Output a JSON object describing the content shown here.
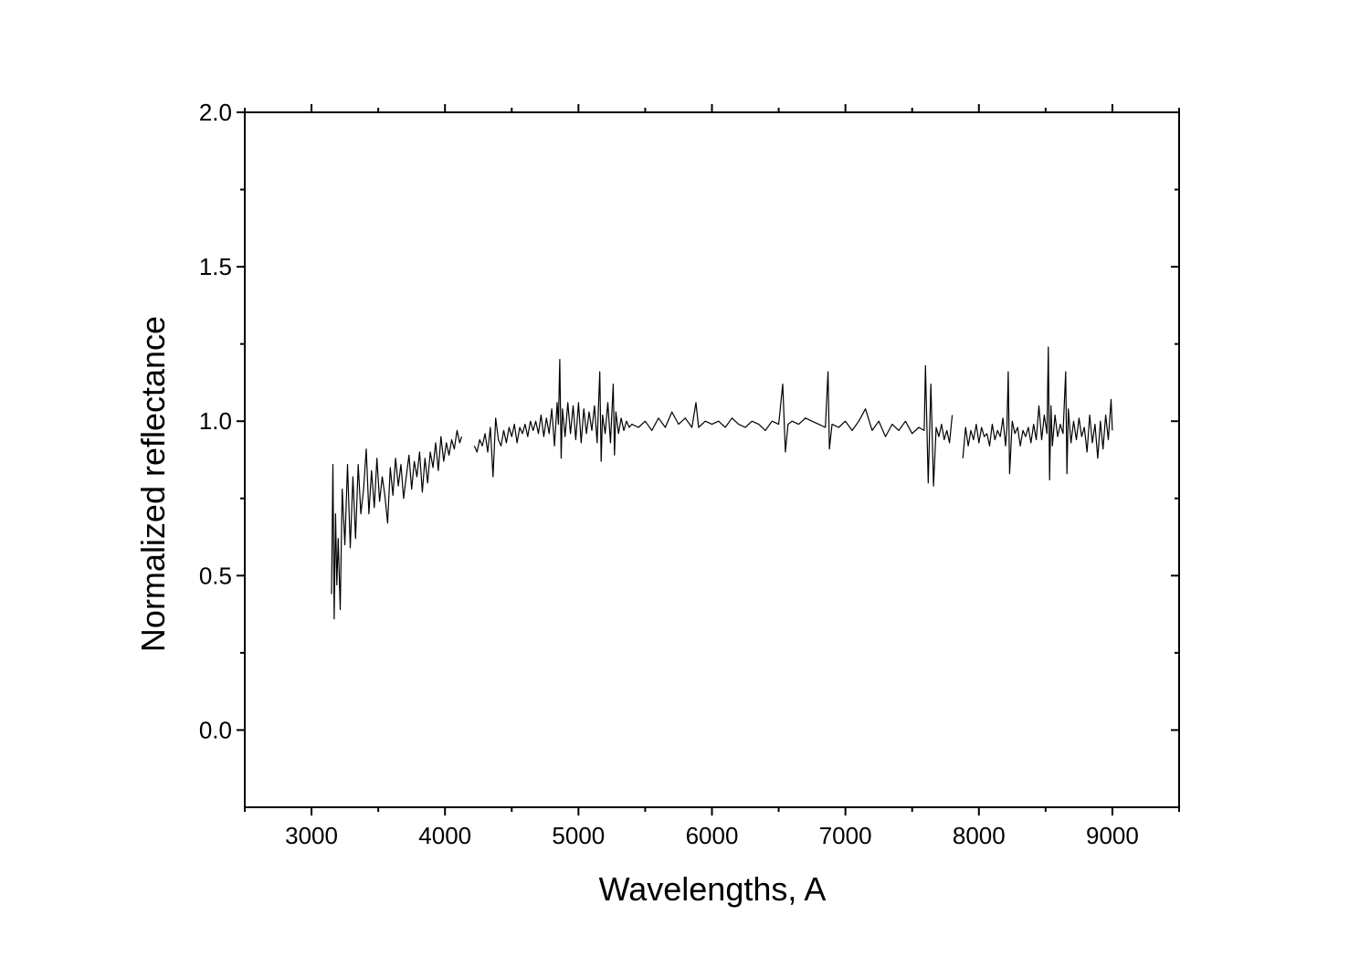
{
  "chart_data": {
    "type": "line",
    "title": "",
    "xlabel": "Wavelengths, A",
    "ylabel": "Normalized reflectance",
    "xlim": [
      2500,
      9500
    ],
    "ylim": [
      -0.25,
      2.0
    ],
    "x_ticks": [
      "3000",
      "4000",
      "5000",
      "6000",
      "7000",
      "8000",
      "9000"
    ],
    "y_ticks": [
      "0.0",
      "0.5",
      "1.0",
      "1.5",
      "2.0"
    ],
    "grid": false,
    "legend": "none",
    "line_color": "#000000",
    "series": [
      {
        "segments": [
          {
            "x": [
              3150,
              3160,
              3170,
              3180,
              3190,
              3200,
              3215,
              3230,
              3250,
              3270,
              3290,
              3310,
              3330,
              3350,
              3370,
              3390,
              3410,
              3430,
              3450,
              3470,
              3490,
              3510,
              3530,
              3550,
              3570,
              3590,
              3610,
              3630,
              3650,
              3670,
              3690,
              3710,
              3730,
              3750,
              3770,
              3790,
              3810,
              3830,
              3850,
              3870,
              3890,
              3910,
              3930,
              3950,
              3970,
              3990,
              4010,
              4030,
              4050,
              4070,
              4090,
              4110,
              4125
            ],
            "y": [
              0.44,
              0.86,
              0.36,
              0.7,
              0.47,
              0.62,
              0.39,
              0.78,
              0.6,
              0.86,
              0.59,
              0.82,
              0.62,
              0.86,
              0.7,
              0.78,
              0.91,
              0.7,
              0.84,
              0.72,
              0.88,
              0.74,
              0.82,
              0.76,
              0.67,
              0.85,
              0.76,
              0.88,
              0.79,
              0.86,
              0.75,
              0.82,
              0.89,
              0.78,
              0.87,
              0.82,
              0.9,
              0.77,
              0.88,
              0.8,
              0.9,
              0.85,
              0.93,
              0.84,
              0.95,
              0.87,
              0.93,
              0.89,
              0.94,
              0.91,
              0.97,
              0.93,
              0.95
            ]
          },
          {
            "x": [
              4220,
              4240,
              4260,
              4280,
              4300,
              4320,
              4340,
              4360,
              4380,
              4400,
              4420,
              4440,
              4460,
              4480,
              4500,
              4520,
              4540,
              4560,
              4580,
              4600,
              4620,
              4640,
              4660,
              4680,
              4700,
              4720,
              4740,
              4760,
              4780,
              4800,
              4820,
              4840,
              4850,
              4860,
              4870,
              4880,
              4900,
              4920,
              4940,
              4960,
              4980,
              5000,
              5020,
              5040,
              5060,
              5080,
              5100,
              5120,
              5140,
              5160,
              5170,
              5180,
              5200,
              5220,
              5240,
              5260,
              5270,
              5280,
              5300,
              5320,
              5340,
              5360,
              5380,
              5400,
              5450,
              5500,
              5550,
              5600,
              5650,
              5700,
              5750,
              5800,
              5850,
              5880,
              5900,
              5950,
              6000,
              6050,
              6100,
              6150,
              6200,
              6250,
              6300,
              6350,
              6400,
              6450,
              6500,
              6530,
              6550,
              6570,
              6600,
              6650,
              6700,
              6750,
              6800,
              6850,
              6870,
              6880,
              6900,
              6950,
              7000,
              7050,
              7100,
              7150,
              7200,
              7250,
              7300,
              7350,
              7400,
              7450,
              7500,
              7550,
              7590,
              7600,
              7620,
              7640,
              7660,
              7680,
              7700,
              7720,
              7740,
              7760,
              7780,
              7800
            ],
            "y": [
              0.92,
              0.9,
              0.94,
              0.92,
              0.96,
              0.9,
              0.98,
              0.82,
              1.01,
              0.94,
              0.92,
              0.97,
              0.93,
              0.98,
              0.95,
              0.99,
              0.93,
              0.98,
              0.96,
              0.99,
              0.95,
              1.0,
              0.97,
              1.0,
              0.96,
              1.02,
              0.95,
              1.01,
              0.96,
              1.04,
              0.92,
              1.06,
              0.99,
              1.2,
              0.88,
              1.04,
              0.95,
              1.06,
              0.96,
              1.05,
              0.94,
              1.06,
              0.93,
              1.04,
              0.96,
              1.03,
              0.97,
              1.05,
              0.93,
              1.16,
              0.87,
              1.02,
              0.96,
              1.06,
              0.93,
              1.12,
              0.89,
              1.03,
              0.96,
              1.01,
              0.97,
              1.0,
              0.98,
              0.99,
              0.98,
              1.0,
              0.97,
              1.01,
              0.98,
              1.03,
              0.99,
              1.01,
              0.98,
              1.06,
              0.98,
              1.0,
              0.99,
              1.0,
              0.98,
              1.01,
              0.99,
              0.98,
              1.0,
              0.99,
              0.97,
              1.0,
              0.99,
              1.12,
              0.9,
              0.99,
              1.0,
              0.99,
              1.01,
              1.0,
              0.99,
              0.98,
              1.16,
              0.91,
              0.99,
              0.98,
              1.0,
              0.97,
              1.0,
              1.04,
              0.97,
              1.0,
              0.95,
              0.99,
              0.97,
              1.0,
              0.96,
              0.98,
              0.97,
              1.18,
              0.8,
              1.12,
              0.79,
              0.98,
              0.95,
              0.99,
              0.94,
              0.97,
              0.93,
              1.02
            ]
          },
          {
            "x": [
              7880,
              7900,
              7920,
              7940,
              7960,
              7980,
              8000,
              8020,
              8040,
              8060,
              8080,
              8100,
              8120,
              8140,
              8160,
              8180,
              8200,
              8210,
              8220,
              8230,
              8250,
              8270,
              8290,
              8310,
              8330,
              8350,
              8370,
              8390,
              8410,
              8430,
              8450,
              8470,
              8490,
              8510,
              8520,
              8530,
              8540,
              8550,
              8570,
              8590,
              8610,
              8630,
              8650,
              8660,
              8670,
              8690,
              8710,
              8730,
              8750,
              8770,
              8790,
              8810,
              8830,
              8850,
              8870,
              8890,
              8910,
              8930,
              8950,
              8970,
              8990,
              9000
            ],
            "y": [
              0.88,
              0.98,
              0.92,
              0.97,
              0.94,
              0.99,
              0.93,
              0.98,
              0.95,
              0.96,
              0.92,
              0.99,
              0.94,
              0.97,
              0.95,
              1.01,
              0.92,
              0.98,
              1.16,
              0.83,
              1.0,
              0.96,
              0.98,
              0.92,
              0.97,
              0.95,
              0.98,
              0.93,
              0.99,
              0.94,
              1.05,
              0.94,
              1.02,
              0.96,
              1.24,
              0.81,
              1.05,
              0.92,
              1.02,
              0.95,
              0.99,
              0.96,
              1.16,
              0.83,
              1.04,
              0.93,
              1.0,
              0.94,
              1.01,
              0.95,
              0.98,
              0.9,
              1.02,
              0.93,
              0.99,
              0.88,
              1.0,
              0.91,
              1.02,
              0.94,
              1.07,
              0.97
            ]
          }
        ]
      }
    ]
  }
}
